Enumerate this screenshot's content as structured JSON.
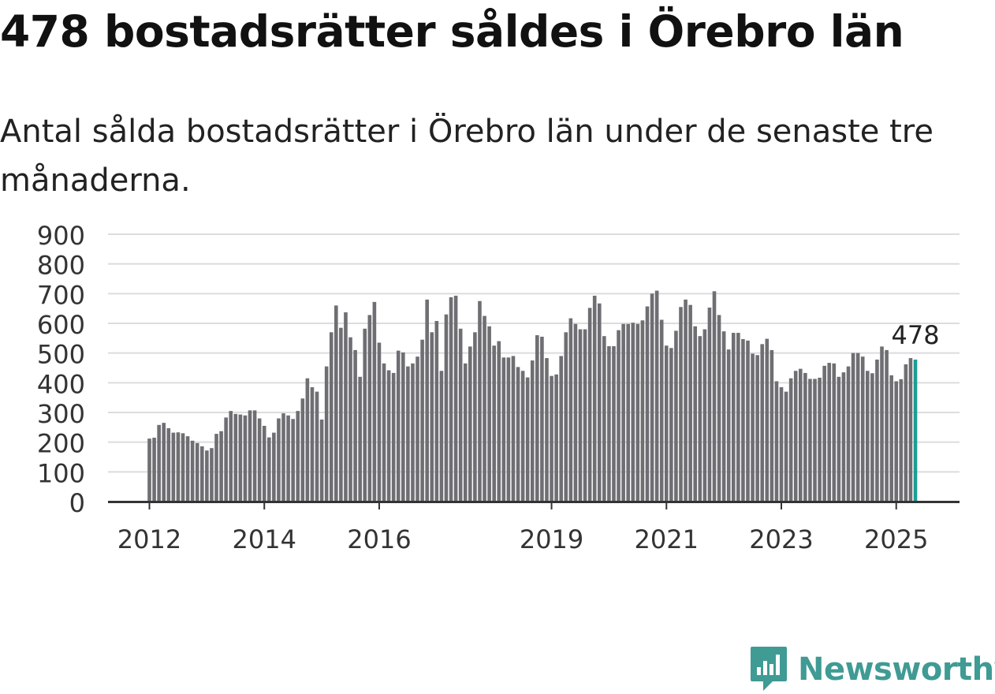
{
  "title": "478 bostadsrätter såldes i Örebro län",
  "subtitle": "Antal sålda bostadsrätter i Örebro län under de senaste tre månaderna.",
  "logo_text": "Newsworthy",
  "colors": {
    "bar": "#6e6e73",
    "highlight": "#1a9e96",
    "grid": "#dcdcdc",
    "axis": "#333333",
    "logo": "#3f9b94"
  },
  "chart_data": {
    "type": "bar",
    "title": "",
    "xlabel": "",
    "ylabel": "",
    "ylim": [
      0,
      900
    ],
    "yticks": [
      "0",
      "100",
      "200",
      "300",
      "400",
      "500",
      "600",
      "700",
      "800",
      "900"
    ],
    "x_start": "2012-01",
    "x_tick_labels": [
      {
        "label": "2012",
        "month_index": 0
      },
      {
        "label": "2014",
        "month_index": 24
      },
      {
        "label": "2016",
        "month_index": 48
      },
      {
        "label": "2019",
        "month_index": 84
      },
      {
        "label": "2021",
        "month_index": 108
      },
      {
        "label": "2023",
        "month_index": 132
      },
      {
        "label": "2025",
        "month_index": 156
      }
    ],
    "grid": true,
    "highlight_label": "478",
    "values": [
      212,
      215,
      258,
      265,
      247,
      232,
      233,
      230,
      220,
      205,
      197,
      186,
      172,
      180,
      228,
      237,
      283,
      305,
      295,
      293,
      290,
      307,
      307,
      280,
      255,
      216,
      232,
      280,
      297,
      290,
      278,
      305,
      347,
      415,
      385,
      370,
      276,
      455,
      570,
      660,
      585,
      637,
      553,
      510,
      420,
      582,
      628,
      672,
      535,
      465,
      442,
      433,
      508,
      502,
      455,
      465,
      488,
      545,
      680,
      570,
      608,
      440,
      630,
      688,
      693,
      582,
      465,
      522,
      570,
      675,
      625,
      590,
      525,
      540,
      485,
      485,
      490,
      453,
      440,
      418,
      475,
      560,
      555,
      483,
      423,
      428,
      490,
      570,
      617,
      598,
      580,
      580,
      652,
      693,
      667,
      557,
      523,
      523,
      577,
      598,
      598,
      602,
      598,
      610,
      657,
      700,
      710,
      612,
      525,
      517,
      575,
      655,
      680,
      662,
      590,
      557,
      580,
      653,
      708,
      628,
      573,
      512,
      568,
      568,
      547,
      542,
      498,
      493,
      530,
      548,
      510,
      405,
      385,
      370,
      415,
      440,
      447,
      433,
      413,
      413,
      417,
      457,
      467,
      465,
      420,
      435,
      455,
      500,
      500,
      488,
      440,
      432,
      478,
      522,
      510,
      425,
      405,
      412,
      462,
      483,
      478
    ]
  }
}
